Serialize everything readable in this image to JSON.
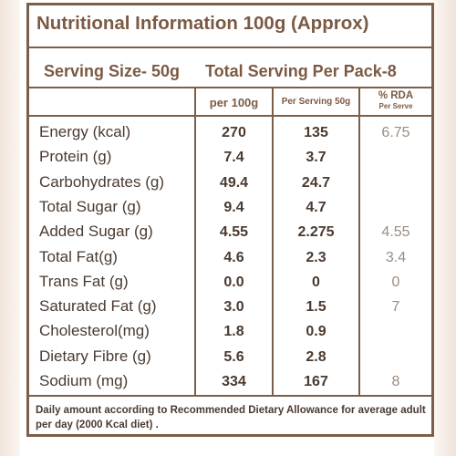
{
  "title": "Nutritional Information 100g (Approx)",
  "serving_size": "Serving Size- 50g",
  "total_serving": "Total Serving Per Pack-8",
  "headers": {
    "per_100g": "per 100g",
    "per_serving": "Per Serving 50g",
    "rda": "% RDA",
    "rda_sub": "Per Serve"
  },
  "rows": [
    {
      "name": "Energy (kcal)",
      "per100": "270",
      "perserv": "135",
      "rda": "6.75"
    },
    {
      "name": "Protein (g)",
      "per100": "7.4",
      "perserv": "3.7",
      "rda": ""
    },
    {
      "name": "Carbohydrates (g)",
      "per100": "49.4",
      "perserv": "24.7",
      "rda": ""
    },
    {
      "name": "Total Sugar (g)",
      "per100": "9.4",
      "perserv": "4.7",
      "rda": ""
    },
    {
      "name": "Added Sugar (g)",
      "per100": "4.55",
      "perserv": "2.275",
      "rda": "4.55"
    },
    {
      "name": "Total Fat(g)",
      "per100": "4.6",
      "perserv": "2.3",
      "rda": "3.4"
    },
    {
      "name": "Trans Fat (g)",
      "per100": "0.0",
      "perserv": "0",
      "rda": "0"
    },
    {
      "name": "Saturated Fat (g)",
      "per100": "3.0",
      "perserv": "1.5",
      "rda": "7"
    },
    {
      "name": "Cholesterol(mg)",
      "per100": "1.8",
      "perserv": "0.9",
      "rda": ""
    },
    {
      "name": "Dietary Fibre (g)",
      "per100": "5.6",
      "perserv": "2.8",
      "rda": ""
    },
    {
      "name": "Sodium (mg)",
      "per100": "334",
      "perserv": "167",
      "rda": "8"
    }
  ],
  "footnote": "Daily amount according to Recommended Dietary Allowance for average adult per day (2000 Kcal diet) .",
  "colors": {
    "border": "#7b5f4a",
    "heading_text": "#7b5a44",
    "body_text": "#4a3a30",
    "rda_text": "#9a8c82"
  }
}
